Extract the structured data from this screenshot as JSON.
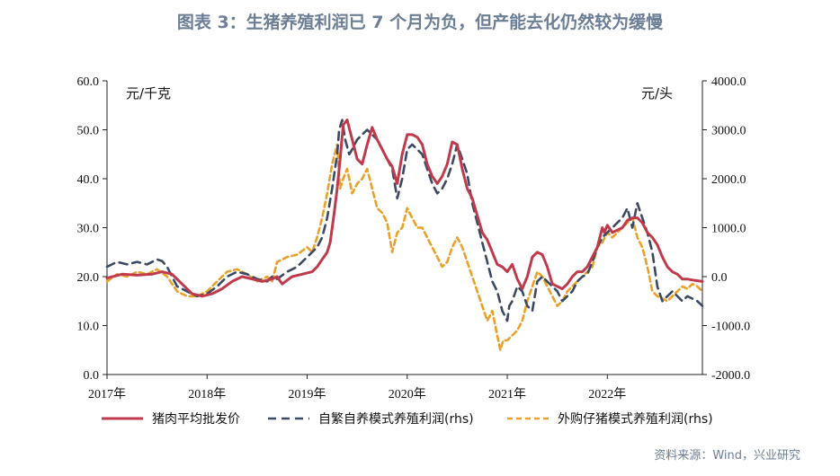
{
  "title": "图表 3：生猪养殖利润已 7 个月为负，但产能去化仍然较为缓慢",
  "source": "资料来源：Wind，兴业研究",
  "colors": {
    "pork": "#c03a4c",
    "self": "#3b4a63",
    "buy": "#eaa12a",
    "text": "#6b7e95"
  },
  "chart_data": {
    "type": "line",
    "ylabel_left": "元/千克",
    "ylabel_right": "元/头",
    "xlim": [
      2017.0,
      2022.95
    ],
    "ylim_left": [
      0,
      60
    ],
    "ylim_right": [
      -2000,
      4000
    ],
    "x_ticks": [
      {
        "label": "2017年",
        "value": 2017
      },
      {
        "label": "2018年",
        "value": 2018
      },
      {
        "label": "2019年",
        "value": 2019
      },
      {
        "label": "2020年",
        "value": 2020
      },
      {
        "label": "2021年",
        "value": 2021
      },
      {
        "label": "2022年",
        "value": 2022
      }
    ],
    "y_left_ticks": [
      "0.0",
      "10.0",
      "20.0",
      "30.0",
      "40.0",
      "50.0",
      "60.0"
    ],
    "y_left_values": [
      0,
      10,
      20,
      30,
      40,
      50,
      60
    ],
    "y_right_ticks": [
      "-2000.0",
      "-1000.0",
      "0.0",
      "1000.0",
      "2000.0",
      "3000.0",
      "4000.0"
    ],
    "y_right_values": [
      -2000,
      -1000,
      0,
      1000,
      2000,
      3000,
      4000
    ],
    "series": [
      {
        "name": "猪肉平均批发价",
        "axis": "left",
        "style": "solid",
        "x": [
          2017.0,
          2017.15,
          2017.3,
          2017.45,
          2017.55,
          2017.65,
          2017.75,
          2017.85,
          2017.95,
          2018.05,
          2018.15,
          2018.25,
          2018.35,
          2018.45,
          2018.55,
          2018.65,
          2018.7,
          2018.75,
          2018.85,
          2018.95,
          2019.05,
          2019.1,
          2019.15,
          2019.2,
          2019.23,
          2019.27,
          2019.3,
          2019.33,
          2019.36,
          2019.4,
          2019.45,
          2019.5,
          2019.55,
          2019.6,
          2019.65,
          2019.7,
          2019.75,
          2019.8,
          2019.85,
          2019.9,
          2019.95,
          2020.0,
          2020.05,
          2020.1,
          2020.15,
          2020.2,
          2020.25,
          2020.3,
          2020.35,
          2020.4,
          2020.45,
          2020.5,
          2020.55,
          2020.6,
          2020.65,
          2020.7,
          2020.75,
          2020.8,
          2020.85,
          2020.9,
          2020.95,
          2021.0,
          2021.05,
          2021.1,
          2021.15,
          2021.2,
          2021.25,
          2021.3,
          2021.35,
          2021.4,
          2021.45,
          2021.5,
          2021.55,
          2021.6,
          2021.65,
          2021.7,
          2021.75,
          2021.8,
          2021.85,
          2021.9,
          2021.95,
          2021.97,
          2022.0,
          2022.05,
          2022.1,
          2022.15,
          2022.2,
          2022.25,
          2022.3,
          2022.35,
          2022.4,
          2022.45,
          2022.5,
          2022.55,
          2022.6,
          2022.65,
          2022.7,
          2022.75,
          2022.8,
          2022.85,
          2022.95
        ],
        "values": [
          19.7,
          20.5,
          20.3,
          20.5,
          21.0,
          20.5,
          18.5,
          16.5,
          16.0,
          16.5,
          17.5,
          19.0,
          20.0,
          19.5,
          19.0,
          19.5,
          20.0,
          18.5,
          20.0,
          20.5,
          21.0,
          22.0,
          23.5,
          25.0,
          27.0,
          33.0,
          38.0,
          44.0,
          51.0,
          52.0,
          48.0,
          44.0,
          43.0,
          47.0,
          50.5,
          48.0,
          46.0,
          44.0,
          42.5,
          39.0,
          45.0,
          49.0,
          49.0,
          48.5,
          47.0,
          43.0,
          40.5,
          39.0,
          40.5,
          43.0,
          47.5,
          47.0,
          42.0,
          38.0,
          36.0,
          32.5,
          29.0,
          27.5,
          25.0,
          22.5,
          22.0,
          21.0,
          22.5,
          19.5,
          17.5,
          20.0,
          24.0,
          25.0,
          24.5,
          22.0,
          18.5,
          18.0,
          17.5,
          18.5,
          20.0,
          21.0,
          21.0,
          22.0,
          24.0,
          26.0,
          30.0,
          29.0,
          30.5,
          29.0,
          29.5,
          30.0,
          31.5,
          32.0,
          32.0,
          31.0,
          29.0,
          28.0,
          26.5,
          24.0,
          22.0,
          21.0,
          20.5,
          19.5,
          19.5,
          19.3,
          19.0
        ]
      },
      {
        "name": "自繁自养模式养殖利润(rhs)",
        "axis": "right",
        "style": "dash",
        "x": [
          2017.0,
          2017.1,
          2017.2,
          2017.3,
          2017.4,
          2017.5,
          2017.55,
          2017.6,
          2017.7,
          2017.8,
          2017.9,
          2018.0,
          2018.1,
          2018.2,
          2018.3,
          2018.4,
          2018.5,
          2018.6,
          2018.65,
          2018.7,
          2018.8,
          2018.9,
          2019.0,
          2019.05,
          2019.1,
          2019.15,
          2019.2,
          2019.25,
          2019.3,
          2019.32,
          2019.35,
          2019.38,
          2019.42,
          2019.45,
          2019.5,
          2019.55,
          2019.6,
          2019.65,
          2019.7,
          2019.75,
          2019.8,
          2019.85,
          2019.9,
          2019.95,
          2020.0,
          2020.05,
          2020.1,
          2020.15,
          2020.2,
          2020.25,
          2020.3,
          2020.35,
          2020.4,
          2020.45,
          2020.5,
          2020.55,
          2020.6,
          2020.65,
          2020.7,
          2020.75,
          2020.8,
          2020.85,
          2020.9,
          2020.95,
          2021.0,
          2021.02,
          2021.05,
          2021.1,
          2021.15,
          2021.2,
          2021.25,
          2021.3,
          2021.35,
          2021.4,
          2021.45,
          2021.5,
          2021.55,
          2021.6,
          2021.65,
          2021.7,
          2021.75,
          2021.8,
          2021.85,
          2021.9,
          2021.95,
          2022.0,
          2022.05,
          2022.1,
          2022.15,
          2022.2,
          2022.25,
          2022.3,
          2022.35,
          2022.4,
          2022.45,
          2022.5,
          2022.55,
          2022.6,
          2022.65,
          2022.7,
          2022.75,
          2022.8,
          2022.85,
          2022.9,
          2022.95
        ],
        "values": [
          200,
          300,
          250,
          300,
          250,
          350,
          320,
          200,
          -200,
          -300,
          -400,
          -350,
          -200,
          0,
          100,
          50,
          -50,
          -100,
          0,
          -50,
          100,
          200,
          400,
          500,
          600,
          800,
          1200,
          1800,
          2500,
          3000,
          3200,
          2800,
          2500,
          2600,
          2800,
          2900,
          3000,
          2900,
          2800,
          2600,
          2400,
          2200,
          1600,
          2000,
          2600,
          2700,
          2600,
          2500,
          2200,
          1900,
          1700,
          1800,
          2000,
          2300,
          2700,
          2400,
          2100,
          1500,
          1100,
          700,
          300,
          -100,
          -300,
          -700,
          -900,
          -600,
          -500,
          -200,
          -300,
          -600,
          -700,
          -100,
          0,
          -100,
          -200,
          -300,
          -500,
          -400,
          -300,
          -100,
          0,
          50,
          300,
          600,
          800,
          900,
          1000,
          1100,
          1200,
          1400,
          1000,
          1500,
          1200,
          900,
          500,
          -200,
          -500,
          -400,
          -300,
          -400,
          -500,
          -400,
          -450,
          -500,
          -600
        ]
      },
      {
        "name": "外购仔猪模式养殖利润(rhs)",
        "axis": "right",
        "style": "dot",
        "x": [
          2017.0,
          2017.1,
          2017.2,
          2017.3,
          2017.4,
          2017.5,
          2017.6,
          2017.7,
          2017.8,
          2017.9,
          2018.0,
          2018.1,
          2018.2,
          2018.3,
          2018.4,
          2018.5,
          2018.6,
          2018.65,
          2018.7,
          2018.8,
          2018.9,
          2019.0,
          2019.05,
          2019.1,
          2019.15,
          2019.2,
          2019.25,
          2019.3,
          2019.33,
          2019.36,
          2019.4,
          2019.45,
          2019.5,
          2019.55,
          2019.6,
          2019.65,
          2019.7,
          2019.75,
          2019.8,
          2019.85,
          2019.9,
          2019.95,
          2020.0,
          2020.05,
          2020.1,
          2020.15,
          2020.2,
          2020.25,
          2020.3,
          2020.35,
          2020.4,
          2020.45,
          2020.5,
          2020.55,
          2020.6,
          2020.65,
          2020.7,
          2020.75,
          2020.8,
          2020.85,
          2020.9,
          2020.93,
          2020.96,
          2021.0,
          2021.05,
          2021.1,
          2021.15,
          2021.2,
          2021.25,
          2021.3,
          2021.35,
          2021.4,
          2021.45,
          2021.5,
          2021.55,
          2021.6,
          2021.65,
          2021.7,
          2021.75,
          2021.8,
          2021.85,
          2021.9,
          2021.95,
          2022.0,
          2022.05,
          2022.1,
          2022.15,
          2022.2,
          2022.25,
          2022.3,
          2022.35,
          2022.4,
          2022.45,
          2022.5,
          2022.55,
          2022.6,
          2022.65,
          2022.7,
          2022.75,
          2022.8,
          2022.85,
          2022.9,
          2022.95
        ],
        "values": [
          -100,
          50,
          0,
          100,
          50,
          150,
          0,
          -300,
          -400,
          -400,
          -300,
          -100,
          100,
          150,
          50,
          -100,
          0,
          -100,
          300,
          400,
          450,
          600,
          500,
          800,
          1200,
          1700,
          2300,
          2700,
          1800,
          2000,
          2200,
          1700,
          1900,
          2000,
          2200,
          1800,
          1400,
          1300,
          1100,
          500,
          900,
          1000,
          1400,
          1200,
          1000,
          1000,
          800,
          600,
          400,
          200,
          300,
          600,
          800,
          600,
          300,
          0,
          -300,
          -600,
          -900,
          -700,
          -1200,
          -1500,
          -1300,
          -1300,
          -1200,
          -1100,
          -900,
          -500,
          -200,
          100,
          0,
          -200,
          -400,
          -600,
          -500,
          -300,
          -200,
          -100,
          0,
          100,
          200,
          600,
          700,
          900,
          800,
          900,
          1000,
          1100,
          1200,
          800,
          600,
          200,
          -300,
          -400,
          -450,
          -500,
          -400,
          -300,
          -200,
          -250,
          -150,
          -200,
          -300
        ]
      }
    ],
    "legend": [
      {
        "label": "猪肉平均批发价"
      },
      {
        "label": "自繁自养模式养殖利润(rhs)"
      },
      {
        "label": "外购仔猪模式养殖利润(rhs)"
      }
    ],
    "grid": false,
    "legend_position": "bottom"
  }
}
